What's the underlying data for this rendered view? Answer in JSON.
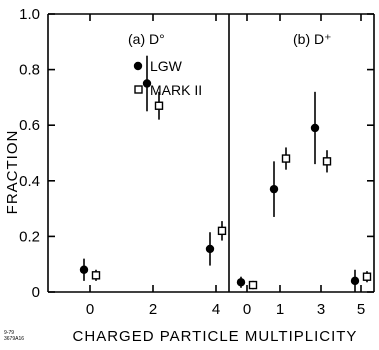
{
  "chart_data": {
    "type": "scatter",
    "title": "",
    "xlabel": "CHARGED PARTICLE MULTIPLICITY",
    "ylabel": "FRACTION",
    "ylim": [
      0,
      1.0
    ],
    "y_ticks": [
      "0",
      "0.2",
      "0.4",
      "0.6",
      "0.8",
      "1.0"
    ],
    "grid": false,
    "legend_position": "top-center of panel (a)",
    "figure_id": [
      "9-79",
      "3679A16"
    ],
    "panels": [
      {
        "label": "(a) D°",
        "x_ticks": [
          "0",
          "2",
          "4"
        ],
        "series": [
          {
            "name": "LGW",
            "marker": "filled-circle",
            "points": [
              {
                "x": 0,
                "y": 0.08,
                "err": 0.04
              },
              {
                "x": 2,
                "y": 0.75,
                "err": 0.1
              },
              {
                "x": 4,
                "y": 0.155,
                "err": 0.06
              }
            ]
          },
          {
            "name": "MARK II",
            "marker": "open-square",
            "points": [
              {
                "x": 0,
                "y": 0.06,
                "err": 0.02
              },
              {
                "x": 2,
                "y": 0.67,
                "err": 0.05
              },
              {
                "x": 4,
                "y": 0.22,
                "err": 0.035
              }
            ]
          }
        ]
      },
      {
        "label": "(b) D⁺",
        "x_ticks": [
          "0",
          "1",
          "3",
          "5"
        ],
        "series": [
          {
            "name": "LGW",
            "marker": "filled-circle",
            "points": [
              {
                "x": 0,
                "y": 0.035,
                "err": 0.02
              },
              {
                "x": 1,
                "y": 0.37,
                "err": 0.1
              },
              {
                "x": 3,
                "y": 0.59,
                "err": 0.13
              },
              {
                "x": 5,
                "y": 0.04,
                "err": 0.04
              }
            ]
          },
          {
            "name": "MARK II",
            "marker": "open-square",
            "points": [
              {
                "x": 0,
                "y": 0.025,
                "err": 0.015
              },
              {
                "x": 1,
                "y": 0.48,
                "err": 0.04
              },
              {
                "x": 3,
                "y": 0.47,
                "err": 0.04
              },
              {
                "x": 5,
                "y": 0.055,
                "err": 0.02
              }
            ]
          }
        ]
      }
    ],
    "legend": [
      {
        "name": "LGW",
        "marker": "filled-circle"
      },
      {
        "name": "MARK II",
        "marker": "open-square"
      }
    ]
  }
}
